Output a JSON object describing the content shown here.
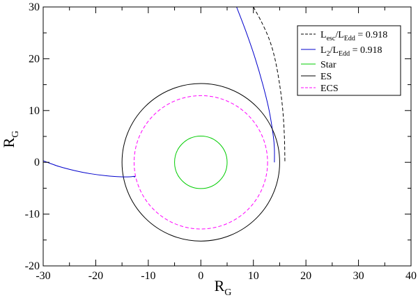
{
  "chart_data": {
    "type": "line",
    "title": "",
    "xlabel": {
      "main": "R",
      "sub": "G"
    },
    "ylabel": {
      "main": "R",
      "sub": "G"
    },
    "xlim": [
      -30,
      40
    ],
    "ylim": [
      -20,
      30
    ],
    "x_ticks": [
      -30,
      -20,
      -10,
      0,
      10,
      20,
      30,
      40
    ],
    "y_ticks": [
      -20,
      -10,
      0,
      10,
      20,
      30
    ],
    "x_tick_labels": [
      "-30",
      "-20",
      "-10",
      "0",
      "10",
      "20",
      "30",
      "40"
    ],
    "y_tick_labels": [
      "-20",
      "-10",
      "0",
      "10",
      "20",
      "30"
    ],
    "grid": false,
    "legend_position": "top-right",
    "series": [
      {
        "name": {
          "pre": "L",
          "sub1": "esc",
          "mid": "/L",
          "sub2": "Edd",
          "post": " = 0.918"
        },
        "style": "dashed",
        "color": "#000000",
        "points": [
          [
            10,
            30
          ],
          [
            11.5,
            27.2
          ],
          [
            13,
            23.8
          ],
          [
            14.1,
            20
          ],
          [
            15,
            15
          ],
          [
            15.6,
            10
          ],
          [
            15.9,
            5
          ],
          [
            16,
            0
          ]
        ]
      },
      {
        "name": {
          "pre": "L",
          "sub1": "2",
          "mid": "/L",
          "sub2": "Edd",
          "post": " = 0.918"
        },
        "style": "solid",
        "color": "#0000cc",
        "points": [
          [
            6.8,
            30
          ],
          [
            8.5,
            25.5
          ],
          [
            10.3,
            20.2
          ],
          [
            11.8,
            15
          ],
          [
            13,
            10
          ],
          [
            13.8,
            5
          ],
          [
            14,
            2.5
          ],
          [
            14,
            0
          ]
        ]
      },
      {
        "name": {
          "pre": "Star"
        },
        "style": "solid",
        "color": "#00cc00",
        "circle": {
          "cx": 0,
          "cy": 0,
          "r": 5
        }
      },
      {
        "name": {
          "pre": "ES"
        },
        "style": "solid",
        "color": "#000000",
        "circle": {
          "cx": 0,
          "cy": 0,
          "r": 15
        }
      },
      {
        "name": {
          "pre": "ECS"
        },
        "style": "dashed",
        "color": "#ff00ff",
        "circle": {
          "cx": 0,
          "cy": 0,
          "r": 12.7
        }
      }
    ],
    "unlisted_lines": [
      {
        "style": "solid",
        "color": "#0000cc",
        "points": [
          [
            -30,
            0.3
          ],
          [
            -27,
            -0.8
          ],
          [
            -24,
            -1.6
          ],
          [
            -21,
            -2.2
          ],
          [
            -18,
            -2.6
          ],
          [
            -15.2,
            -2.8
          ],
          [
            -13.5,
            -2.8
          ],
          [
            -12.6,
            -2.7
          ],
          [
            -12.7,
            -2.9
          ]
        ]
      }
    ]
  }
}
